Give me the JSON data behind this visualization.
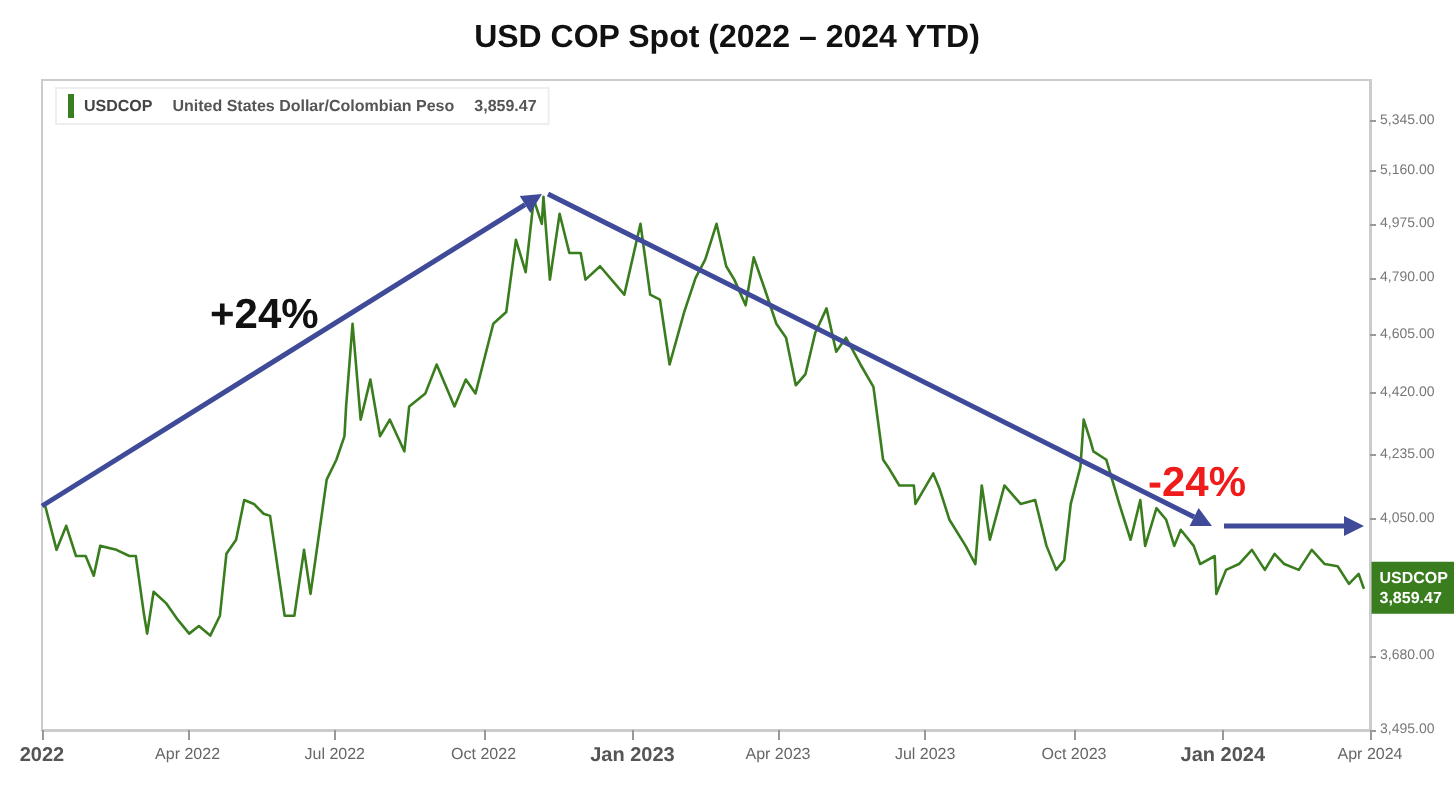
{
  "chart_data": {
    "type": "line",
    "title": "USD COP Spot (2022 – 2024 YTD)",
    "annotations": [
      "United States Dollar/Colombian Peso",
      "+24%",
      "-24%",
      "3,859.47"
    ],
    "x": [
      "2022-01-03",
      "2022-01-10",
      "2022-01-16",
      "2022-01-22",
      "2022-01-28",
      "2022-02-02",
      "2022-02-06",
      "2022-02-16",
      "2022-02-24",
      "2022-02-28",
      "2022-03-05",
      "2022-03-07",
      "2022-03-11",
      "2022-03-19",
      "2022-03-26",
      "2022-04-02",
      "2022-04-08",
      "2022-04-15",
      "2022-04-21",
      "2022-04-25",
      "2022-05-01",
      "2022-05-06",
      "2022-05-12",
      "2022-05-18",
      "2022-05-22",
      "2022-05-26",
      "2022-05-31",
      "2022-06-06",
      "2022-06-12",
      "2022-06-16",
      "2022-06-19",
      "2022-06-26",
      "2022-07-02",
      "2022-07-07",
      "2022-07-08",
      "2022-07-12",
      "2022-07-17",
      "2022-07-23",
      "2022-07-29",
      "2022-08-04",
      "2022-08-13",
      "2022-08-16",
      "2022-08-26",
      "2022-09-02",
      "2022-09-13",
      "2022-09-20",
      "2022-09-26",
      "2022-10-07",
      "2022-10-15",
      "2022-10-21",
      "2022-10-27",
      "2022-11-01",
      "2022-11-06",
      "2022-11-07",
      "2022-11-11",
      "2022-11-17",
      "2022-11-23",
      "2022-11-30",
      "2022-12-03",
      "2022-12-12",
      "2022-12-27",
      "2023-01-06",
      "2023-01-12",
      "2023-01-18",
      "2023-01-24",
      "2023-02-02",
      "2023-02-09",
      "2023-02-15",
      "2023-02-22",
      "2023-02-28",
      "2023-03-05",
      "2023-03-12",
      "2023-03-17",
      "2023-03-25",
      "2023-03-31",
      "2023-04-06",
      "2023-04-12",
      "2023-04-18",
      "2023-04-24",
      "2023-05-01",
      "2023-05-07",
      "2023-05-13",
      "2023-05-22",
      "2023-05-30",
      "2023-06-05",
      "2023-06-09",
      "2023-06-15",
      "2023-06-24",
      "2023-06-25",
      "2023-07-06",
      "2023-07-10",
      "2023-07-16",
      "2023-07-26",
      "2023-08-01",
      "2023-08-05",
      "2023-08-10",
      "2023-08-19",
      "2023-08-29",
      "2023-09-07",
      "2023-09-14",
      "2023-09-20",
      "2023-09-25",
      "2023-09-29",
      "2023-10-05",
      "2023-10-07",
      "2023-10-11",
      "2023-10-13",
      "2023-10-21",
      "2023-10-29",
      "2023-11-05",
      "2023-11-11",
      "2023-11-14",
      "2023-11-21",
      "2023-11-27",
      "2023-12-02",
      "2023-12-06",
      "2023-12-14",
      "2023-12-18",
      "2023-12-27",
      "2023-12-28",
      "2024-01-03",
      "2024-01-11",
      "2024-01-19",
      "2024-01-27",
      "2024-02-02",
      "2024-02-08",
      "2024-02-17",
      "2024-02-25",
      "2024-03-04",
      "2024-03-12",
      "2024-03-19",
      "2024-03-25",
      "2024-03-28"
    ],
    "series": [
      {
        "name": "USDCOP",
        "color": "#3a7d1e",
        "values": [
          4086,
          3963,
          4030,
          3946,
          3946,
          3892,
          3974,
          3963,
          3946,
          3946,
          3790,
          3738,
          3849,
          3817,
          3774,
          3738,
          3758,
          3733,
          3785,
          3952,
          3991,
          4103,
          4092,
          4064,
          4058,
          3935,
          3785,
          3785,
          3963,
          3843,
          3935,
          4162,
          4220,
          4290,
          4380,
          4640,
          4340,
          4463,
          4290,
          4340,
          4245,
          4380,
          4420,
          4510,
          4380,
          4463,
          4420,
          4640,
          4678,
          4920,
          4810,
          5060,
          4975,
          5070,
          4785,
          5010,
          4875,
          4875,
          4785,
          4830,
          4735,
          4975,
          4735,
          4719,
          4510,
          4678,
          4790,
          4852,
          4975,
          4830,
          4785,
          4700,
          4860,
          4735,
          4640,
          4595,
          4445,
          4480,
          4610,
          4690,
          4550,
          4595,
          4510,
          4440,
          4220,
          4192,
          4145,
          4145,
          4092,
          4180,
          4134,
          4047,
          3974,
          3924,
          4145,
          3991,
          4145,
          4092,
          4103,
          3974,
          3908,
          3935,
          4092,
          4200,
          4340,
          4279,
          4245,
          4220,
          4092,
          3991,
          4103,
          3974,
          4080,
          4047,
          3974,
          4019,
          3974,
          3924,
          3946,
          3843,
          3908,
          3924,
          3963,
          3908,
          3952,
          3924,
          3908,
          3963,
          3924,
          3918,
          3870,
          3897,
          3859.47
        ],
        "value_labels": [
          null,
          null,
          null,
          null,
          null,
          null,
          null,
          null,
          null,
          null,
          null,
          null,
          null,
          null,
          null,
          null,
          null,
          null,
          null,
          null,
          null,
          null,
          null,
          null,
          null,
          null,
          null,
          null,
          null,
          null,
          null,
          null,
          null,
          null,
          null,
          null,
          null,
          null,
          null,
          null,
          null,
          null,
          null,
          null,
          null,
          null,
          null,
          null,
          null,
          null,
          null,
          null,
          null,
          null,
          null,
          null,
          null,
          null,
          null,
          null,
          null,
          null,
          null,
          null,
          null,
          null,
          null,
          null,
          null,
          null,
          null,
          null,
          null,
          null,
          null,
          null,
          null,
          null,
          null,
          null,
          null,
          null,
          null,
          null,
          null,
          null,
          null,
          null,
          null,
          null,
          null,
          null,
          null,
          null,
          null,
          null,
          null,
          null,
          null,
          null,
          null,
          null,
          null,
          null,
          null,
          null,
          null,
          null,
          null,
          null,
          null,
          null,
          null,
          null,
          null,
          null,
          null,
          null,
          null,
          null,
          null,
          null,
          null,
          null,
          null,
          null,
          null,
          null,
          null,
          null,
          null,
          null,
          "3,859.47"
        ]
      }
    ],
    "xlim": [
      "2022-01-01",
      "2024-04-01"
    ],
    "xticks": [
      {
        "value": "2022-01-01",
        "label": "2022"
      },
      {
        "value": "2022-04-01",
        "label": "Apr 2022"
      },
      {
        "value": "2022-07-01",
        "label": "Jul 2022"
      },
      {
        "value": "2022-10-01",
        "label": "Oct 2022"
      },
      {
        "value": "2023-01-01",
        "label": "Jan 2023"
      },
      {
        "value": "2023-04-01",
        "label": "Apr 2023"
      },
      {
        "value": "2023-07-01",
        "label": "Jul 2023"
      },
      {
        "value": "2023-10-01",
        "label": "Oct 2023"
      },
      {
        "value": "2024-01-01",
        "label": "Jan 2024"
      },
      {
        "value": "2024-04-01",
        "label": "Apr 2024"
      }
    ],
    "ylim": [
      3495,
      5500
    ],
    "yticks": [
      {
        "value": 3495,
        "label": "3,495.00"
      },
      {
        "value": 3680,
        "label": "3,680.00"
      },
      {
        "value": 4050,
        "label": "4,050.00"
      },
      {
        "value": 4235,
        "label": "4,235.00"
      },
      {
        "value": 4420,
        "label": "4,420.00"
      },
      {
        "value": 4605,
        "label": "4,605.00"
      },
      {
        "value": 4790,
        "label": "4,790.00"
      },
      {
        "value": 4975,
        "label": "4,975.00"
      },
      {
        "value": 5160,
        "label": "5,160.00"
      },
      {
        "value": 5345,
        "label": "5,345.00"
      }
    ],
    "log": true,
    "grid": false,
    "legend": "top left",
    "marker": "none",
    "line_style": "solid"
  }
}
